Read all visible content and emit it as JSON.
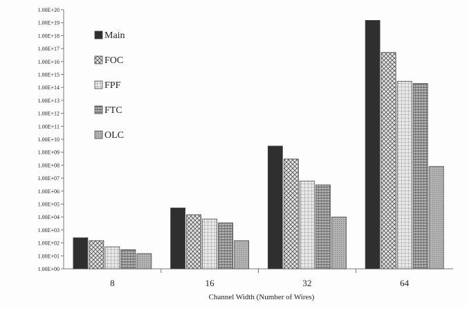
{
  "chart_data": {
    "type": "bar",
    "title": "",
    "xlabel": "Channel Width (Number of Wires)",
    "ylabel": "",
    "yscale": "log",
    "ylim": [
      1,
      1e+20
    ],
    "ytick_labels": [
      "1.00E+00",
      "1.00E+01",
      "1.00E+02",
      "1.00E+03",
      "1.00E+04",
      "1.00E+05",
      "1.00E+06",
      "1.00E+07",
      "1.00E+08",
      "1.00E+09",
      "1.00E+10",
      "1.00E+11",
      "1.00E+12",
      "1.00E+13",
      "1.00E+14",
      "1.00E+15",
      "1.00E+16",
      "1.00E+17",
      "1.00E+18",
      "1.00E+19",
      "1.00E+20"
    ],
    "categories": [
      "8",
      "16",
      "32",
      "64"
    ],
    "legend_position": "top-left",
    "grid": false,
    "series": [
      {
        "name": "Main",
        "color": "#2f2f2f",
        "pattern": "solid",
        "values": [
          250.0,
          50000.0,
          3000000000.0,
          1.5e+19
        ]
      },
      {
        "name": "FOC",
        "color": "#bdbdbd",
        "pattern": "crosshatch",
        "values": [
          150.0,
          15000.0,
          300000000.0,
          5e+16
        ]
      },
      {
        "name": "FPF",
        "color": "#c9c9c9",
        "pattern": "grid",
        "values": [
          50.0,
          7000.0,
          6000000.0,
          300000000000000.0
        ]
      },
      {
        "name": "FTC",
        "color": "#9a9a9a",
        "pattern": "vertical-lines",
        "values": [
          30.0,
          3500.0,
          3000000.0,
          200000000000000.0
        ]
      },
      {
        "name": "OLC",
        "color": "#a8a8a8",
        "pattern": "dots",
        "values": [
          15.0,
          150.0,
          10000.0,
          80000000.0
        ]
      }
    ]
  }
}
